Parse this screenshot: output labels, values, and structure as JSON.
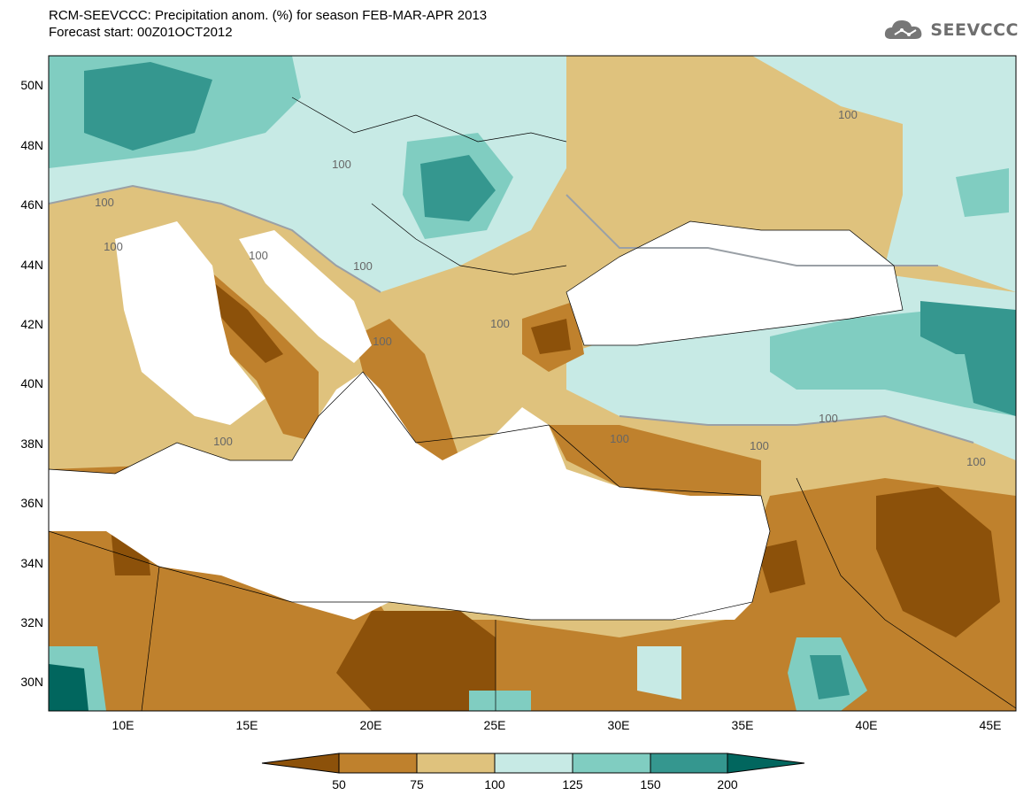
{
  "header": {
    "title_line1": "RCM-SEEVCCC: Precipitation anom. (%) for season FEB-MAR-APR 2013",
    "title_line2": "Forecast start: 00Z01OCT2012",
    "logo_text": "SEEVCCC"
  },
  "axes": {
    "lat_labels": [
      "50N",
      "48N",
      "46N",
      "44N",
      "42N",
      "40N",
      "38N",
      "36N",
      "34N",
      "32N",
      "30N"
    ],
    "lon_labels": [
      "10E",
      "15E",
      "20E",
      "25E",
      "30E",
      "35E",
      "40E",
      "45E"
    ]
  },
  "contour_labels": [
    "100",
    "100",
    "100",
    "100",
    "100",
    "100",
    "100",
    "100",
    "100",
    "100",
    "100",
    "100",
    "100"
  ],
  "legend": {
    "ticks": [
      "50",
      "75",
      "100",
      "125",
      "150",
      "200"
    ],
    "colors": [
      "#8c510a",
      "#bf812d",
      "#dfc27d",
      "#c7eae5",
      "#80cdc1",
      "#35978f",
      "#01665e"
    ]
  },
  "colors": {
    "very_dry": "#8c510a",
    "dry": "#bf812d",
    "slightly_dry": "#dfc27d",
    "slightly_wet": "#c7eae5",
    "wet": "#80cdc1",
    "very_wet": "#35978f",
    "extreme_wet": "#01665e",
    "sea": "#ffffff",
    "contour": "#9aa0a6"
  }
}
